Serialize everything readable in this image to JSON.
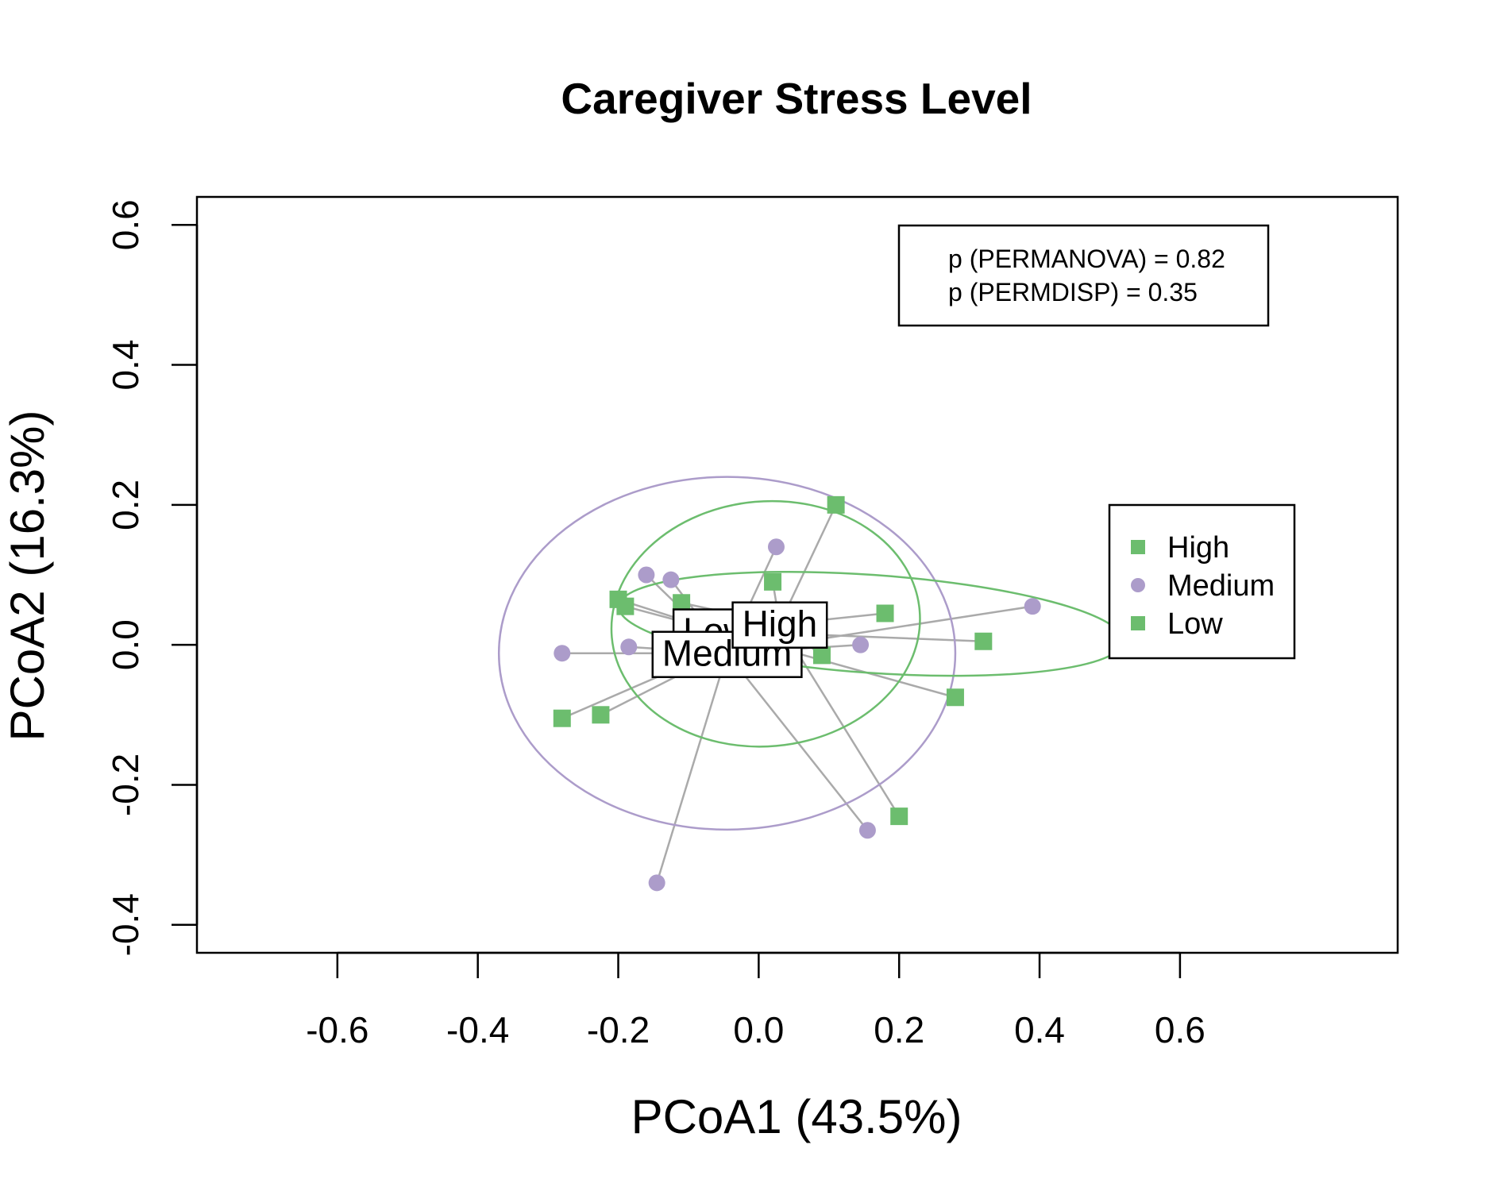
{
  "chart_data": {
    "type": "scatter",
    "title": "Caregiver Stress Level",
    "xlabel": "PCoA1 (43.5%)",
    "ylabel": "PCoA2 (16.3%)",
    "xlim": [
      -0.8,
      0.91
    ],
    "ylim": [
      -0.44,
      0.64
    ],
    "xticks": [
      -0.6,
      -0.4,
      -0.2,
      0.0,
      0.2,
      0.4,
      0.6
    ],
    "yticks": [
      -0.4,
      -0.2,
      0.0,
      0.2,
      0.4,
      0.6
    ],
    "xtick_labels": [
      "-0.6",
      "-0.4",
      "-0.2",
      "0.0",
      "0.2",
      "0.4",
      "0.6"
    ],
    "ytick_labels": [
      "-0.4",
      "-0.2",
      "0.0",
      "0.2",
      "0.4",
      "0.6"
    ],
    "grid": false,
    "stats_text": [
      "p (PERMANOVA) = 0.82",
      "p (PERMDISP) = 0.35"
    ],
    "stats_placement": "top-right",
    "legend_placement": "right",
    "series": [
      {
        "name": "High",
        "color": "#6cbd6e",
        "marker": "square",
        "centroid": [
          0.03,
          0.03
        ],
        "centroid_label": "High",
        "ellipse": {
          "cx": 0.01,
          "cy": 0.03,
          "rx": 0.22,
          "ry": 0.175,
          "angle_deg": -5
        },
        "points": [
          [
            0.11,
            0.2
          ],
          [
            0.02,
            0.09
          ],
          [
            -0.11,
            0.06
          ],
          [
            0.09,
            -0.015
          ],
          [
            0.2,
            -0.245
          ],
          [
            -0.28,
            -0.105
          ],
          [
            -0.225,
            -0.1
          ]
        ]
      },
      {
        "name": "Medium",
        "color": "#ac9cca",
        "marker": "circle",
        "centroid": [
          -0.045,
          -0.012
        ],
        "centroid_label": "Medium",
        "ellipse": {
          "cx": -0.045,
          "cy": -0.012,
          "rx": 0.325,
          "ry": 0.252,
          "angle_deg": 0
        },
        "points": [
          [
            0.025,
            0.14
          ],
          [
            -0.16,
            0.1
          ],
          [
            -0.125,
            0.093
          ],
          [
            -0.28,
            -0.012
          ],
          [
            -0.185,
            -0.003
          ],
          [
            0.145,
            0.0
          ],
          [
            0.39,
            0.055
          ],
          [
            0.155,
            -0.265
          ],
          [
            -0.145,
            -0.34
          ]
        ]
      },
      {
        "name": "Low",
        "color": "#6cbd6e",
        "marker": "square",
        "centroid": [
          -0.06,
          0.02
        ],
        "centroid_label": "Low",
        "ellipse": {
          "cx": 0.16,
          "cy": 0.03,
          "rx": 0.36,
          "ry": 0.07,
          "angle_deg": 4
        },
        "points": [
          [
            -0.2,
            0.065
          ],
          [
            -0.19,
            0.055
          ],
          [
            0.18,
            0.045
          ],
          [
            0.32,
            0.005
          ],
          [
            0.28,
            -0.075
          ]
        ]
      }
    ]
  }
}
